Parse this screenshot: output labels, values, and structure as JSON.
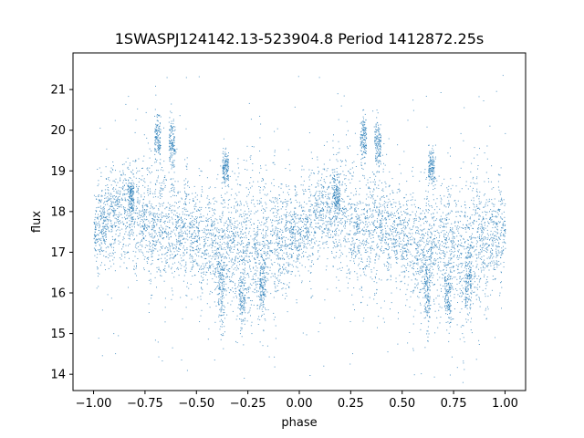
{
  "chart_data": {
    "type": "scatter",
    "title": "1SWASPJ124142.13-523904.8 Period 1412872.25s",
    "xlabel": "phase",
    "ylabel": "flux",
    "xlim": [
      -1.1,
      1.1
    ],
    "ylim": [
      13.6,
      21.9
    ],
    "x_ticks": [
      -1.0,
      -0.75,
      -0.5,
      -0.25,
      0.0,
      0.25,
      0.5,
      0.75,
      1.0
    ],
    "x_tick_labels": [
      "−1.00",
      "−0.75",
      "−0.50",
      "−0.25",
      "0.00",
      "0.25",
      "0.50",
      "0.75",
      "1.00"
    ],
    "y_ticks": [
      14,
      15,
      16,
      17,
      18,
      19,
      20,
      21
    ],
    "y_tick_labels": [
      "14",
      "15",
      "16",
      "17",
      "18",
      "19",
      "20",
      "21"
    ],
    "grid": false,
    "point_color": "#1f77b4",
    "series": [
      {
        "phase_range": [
          -1.0,
          1.0
        ],
        "folded_period_phase": 1.0,
        "profile": [
          {
            "phase": -1.0,
            "center": 17.5,
            "spread": 0.5
          },
          {
            "phase": -0.9,
            "center": 18.0,
            "spread": 0.6
          },
          {
            "phase": -0.8,
            "center": 18.0,
            "spread": 0.7
          },
          {
            "phase": -0.7,
            "center": 17.6,
            "spread": 0.8
          },
          {
            "phase": -0.6,
            "center": 17.7,
            "spread": 0.7
          },
          {
            "phase": -0.5,
            "center": 17.3,
            "spread": 0.6
          },
          {
            "phase": -0.4,
            "center": 17.0,
            "spread": 0.8
          },
          {
            "phase": -0.3,
            "center": 17.2,
            "spread": 0.8
          },
          {
            "phase": -0.2,
            "center": 17.0,
            "spread": 0.9
          },
          {
            "phase": -0.1,
            "center": 17.3,
            "spread": 0.8
          },
          {
            "phase": 0.0,
            "center": 17.5,
            "spread": 0.5
          }
        ],
        "clusters": [
          {
            "phase": -0.69,
            "center": 19.8,
            "spread": 0.3
          },
          {
            "phase": -0.62,
            "center": 19.7,
            "spread": 0.3
          },
          {
            "phase": -0.36,
            "center": 19.1,
            "spread": 0.2
          },
          {
            "phase": -0.82,
            "center": 18.4,
            "spread": 0.2
          },
          {
            "phase": -0.28,
            "center": 15.9,
            "spread": 0.4
          },
          {
            "phase": -0.18,
            "center": 16.2,
            "spread": 0.4
          },
          {
            "phase": -0.38,
            "center": 16.1,
            "spread": 0.5
          }
        ],
        "outlier_range": [
          13.9,
          21.4
        ]
      }
    ]
  }
}
